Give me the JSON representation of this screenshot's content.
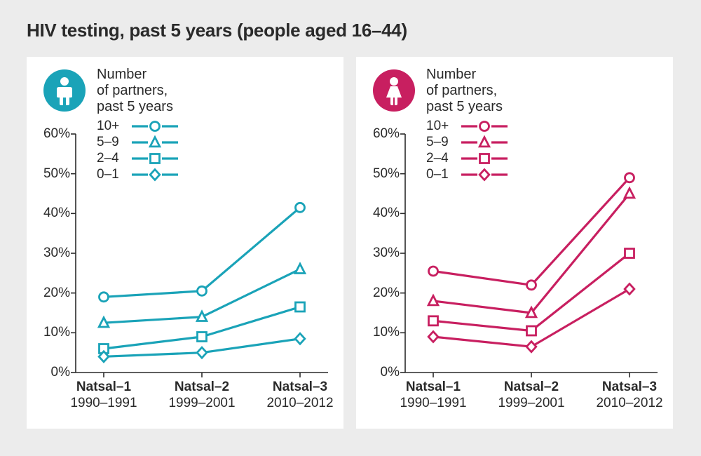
{
  "title": "HIV testing, past 5 years (people aged 16–44)",
  "background_color": "#ececec",
  "panel_bg": "#ffffff",
  "text_color": "#2a2a2a",
  "yaxis": {
    "min": 0,
    "max": 60,
    "step": 10,
    "suffix": "%"
  },
  "xaxis": {
    "categories": [
      {
        "line1": "Natsal–1",
        "line2": "1990–1991"
      },
      {
        "line1": "Natsal–2",
        "line2": "1999–2001"
      },
      {
        "line1": "Natsal–3",
        "line2": "2010–2012"
      }
    ]
  },
  "legend_title_lines": [
    "Number",
    "of partners,",
    "past 5 years"
  ],
  "series_defs": [
    {
      "key": "s10",
      "label": "10+",
      "marker": "circle"
    },
    {
      "key": "s59",
      "label": "5–9",
      "marker": "triangle"
    },
    {
      "key": "s24",
      "label": "2–4",
      "marker": "square"
    },
    {
      "key": "s01",
      "label": "0–1",
      "marker": "diamond"
    }
  ],
  "line_width": 3.2,
  "marker_size": 13,
  "marker_stroke": 2.8,
  "panels": [
    {
      "id": "male",
      "icon": "male",
      "color": "#1aa3b8",
      "series": {
        "s10": [
          19,
          20.5,
          41.5
        ],
        "s59": [
          12.5,
          14,
          26
        ],
        "s24": [
          6,
          9,
          16.5
        ],
        "s01": [
          4,
          5,
          8.5
        ]
      }
    },
    {
      "id": "female",
      "icon": "female",
      "color": "#c81f60",
      "series": {
        "s10": [
          25.5,
          22,
          49
        ],
        "s59": [
          18,
          15,
          45
        ],
        "s24": [
          13,
          10.5,
          30
        ],
        "s01": [
          9,
          6.5,
          21
        ]
      }
    }
  ]
}
